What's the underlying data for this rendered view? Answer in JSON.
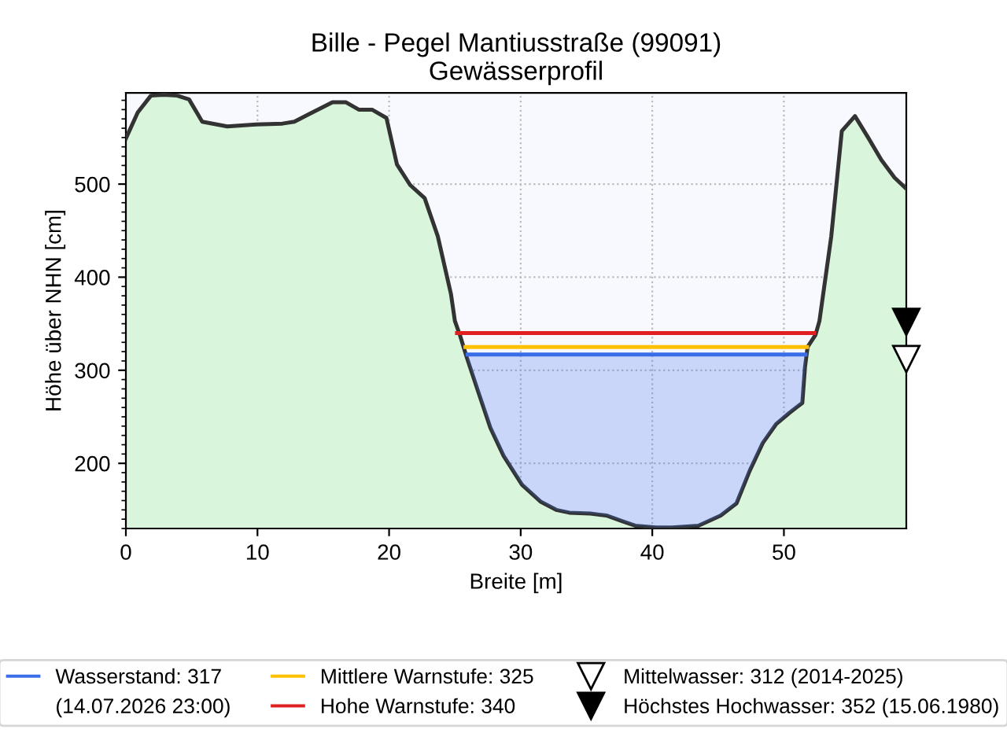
{
  "chart_data": {
    "type": "area",
    "title": "Bille - Pegel Mantiusstraße (99091)\nGewässerprofil",
    "xlabel": "Breite [m]",
    "ylabel": "Höhe über NHN [cm]",
    "x": [
      0,
      0.9,
      1.9,
      2.9,
      3.9,
      4.8,
      5.8,
      7.7,
      9.9,
      11.9,
      12.8,
      13.9,
      15.7,
      16.7,
      17.7,
      18.7,
      19.8,
      20.6,
      21.6,
      22.7,
      23.7,
      24.7,
      25,
      25.4,
      25.9,
      26.7,
      27.7,
      28.7,
      30.1,
      31.5,
      32.7,
      33.7,
      35.3,
      36.5,
      37.7,
      38.7,
      40.3,
      41.5,
      43.5,
      45.2,
      46.4,
      47.4,
      48.4,
      49.4,
      50.4,
      51.4,
      51.6,
      51.8,
      52.4,
      52.7,
      53.6,
      54.4,
      55.4,
      56.4,
      57.4,
      58.4,
      59.3
    ],
    "series": [
      {
        "color": "#d9f5dc",
        "values": [
          549,
          577,
          595,
          596,
          595,
          591,
          567,
          562,
          564,
          565,
          567,
          575,
          588,
          588,
          580,
          580,
          571,
          521,
          499,
          485,
          444,
          382,
          353,
          337,
          314,
          280,
          238,
          208,
          177,
          159,
          150,
          147,
          146,
          144,
          138,
          133,
          131,
          131,
          133,
          144,
          157,
          192,
          222,
          242,
          254,
          265,
          303,
          325,
          338,
          353,
          444,
          557,
          573,
          550,
          526,
          507,
          495
        ]
      },
      {
        "type": "area",
        "name": "Wasserstand: 317\n(14.07.2026 23:00)",
        "color": "#3a6ee8",
        "x": [
          25.96,
          26.7,
          27.7,
          28.7,
          30.1,
          31.5,
          32.7,
          33.7,
          35.3,
          36.5,
          37.7,
          38.7,
          40.3,
          41.5,
          43.5,
          45.2,
          46.4,
          47.4,
          48.4,
          49.4,
          50.4,
          51.4,
          51.64
        ],
        "values": [
          317,
          317,
          317,
          317,
          317,
          317,
          317,
          317,
          317,
          317,
          317,
          317,
          317,
          317,
          317,
          317,
          317,
          317,
          317,
          317,
          317,
          317,
          317
        ]
      },
      {
        "type": "line",
        "name": "Mittlere Warnstufe: 325",
        "color": "#ffc000",
        "x": [
          25.8,
          30,
          35,
          40,
          45,
          51.76
        ],
        "values": [
          325,
          325,
          325,
          325,
          325,
          325
        ]
      },
      {
        "type": "line",
        "name": "Hohe Warnstufe: 340",
        "color": "#e02020",
        "x": [
          25.16,
          30,
          35,
          40,
          45,
          52.3
        ],
        "values": [
          340,
          340,
          340,
          340,
          340,
          340
        ]
      },
      {
        "type": "scatter",
        "marker": "triangle",
        "name": "Mittelwasser: 312 (2014-2025)",
        "color": "#ffffff",
        "x": [
          59.3
        ],
        "values": [
          312
        ]
      },
      {
        "type": "scatter",
        "marker": "triangle",
        "name": "Höchstes Hochwasser: 352 (15.06.1980)",
        "color": "#000000",
        "x": [
          59.3
        ],
        "values": [
          352
        ]
      }
    ],
    "xlim": [
      0,
      59.3
    ],
    "ylim": [
      130,
      598
    ],
    "xticks": [
      0,
      10,
      20,
      30,
      40,
      50
    ],
    "yticks": [
      200,
      300,
      400,
      500
    ],
    "grid": true,
    "legend": "bottom"
  }
}
